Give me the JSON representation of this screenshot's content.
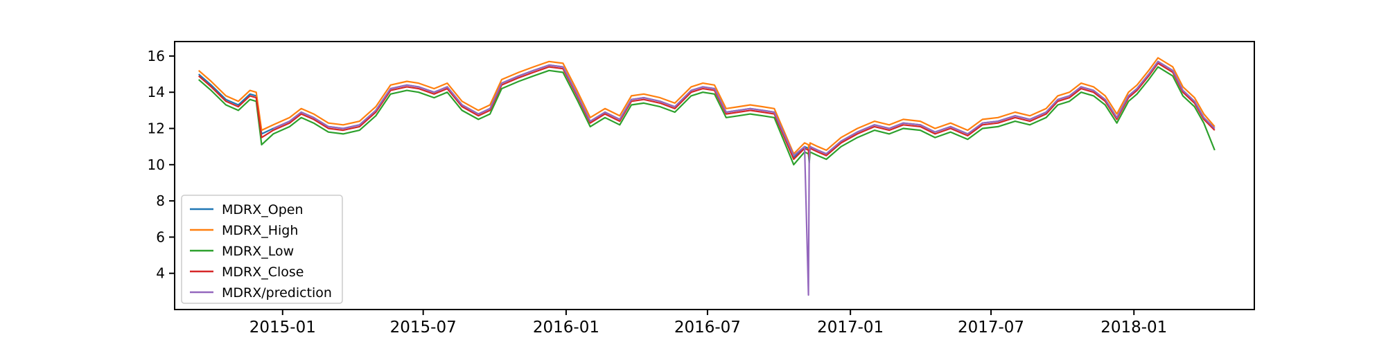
{
  "chart_data": {
    "type": "line",
    "title": "",
    "xlabel": "",
    "ylabel": "",
    "xlim": [
      "2014-08-15",
      "2018-06-05"
    ],
    "ylim": [
      2.0,
      16.8
    ],
    "grid": false,
    "legend_position": "lower-left",
    "x_ticks": [
      {
        "date": "2015-01-01",
        "label": "2015-01"
      },
      {
        "date": "2015-07-01",
        "label": "2015-07"
      },
      {
        "date": "2016-01-01",
        "label": "2016-01"
      },
      {
        "date": "2016-07-01",
        "label": "2016-07"
      },
      {
        "date": "2017-01-01",
        "label": "2017-01"
      },
      {
        "date": "2017-07-01",
        "label": "2017-07"
      },
      {
        "date": "2018-01-01",
        "label": "2018-01"
      }
    ],
    "y_ticks": [
      4,
      6,
      8,
      10,
      12,
      14,
      16
    ],
    "x": [
      "2014-09-15",
      "2014-10-01",
      "2014-10-20",
      "2014-11-05",
      "2014-11-20",
      "2014-11-28",
      "2014-12-05",
      "2014-12-20",
      "2015-01-10",
      "2015-01-25",
      "2015-02-10",
      "2015-03-01",
      "2015-03-20",
      "2015-04-10",
      "2015-05-01",
      "2015-05-20",
      "2015-06-10",
      "2015-06-25",
      "2015-07-15",
      "2015-08-01",
      "2015-08-20",
      "2015-09-10",
      "2015-09-25",
      "2015-10-10",
      "2015-11-01",
      "2015-11-20",
      "2015-12-10",
      "2015-12-28",
      "2016-01-15",
      "2016-02-01",
      "2016-02-20",
      "2016-03-10",
      "2016-03-25",
      "2016-04-10",
      "2016-05-01",
      "2016-05-20",
      "2016-06-10",
      "2016-06-25",
      "2016-07-10",
      "2016-07-25",
      "2016-08-10",
      "2016-08-25",
      "2016-09-10",
      "2016-09-25",
      "2016-10-20",
      "2016-11-03",
      "2016-11-08",
      "2016-11-09",
      "2016-11-10",
      "2016-11-20",
      "2016-12-01",
      "2016-12-20",
      "2017-01-10",
      "2017-02-01",
      "2017-02-20",
      "2017-03-10",
      "2017-04-01",
      "2017-04-20",
      "2017-05-10",
      "2017-06-01",
      "2017-06-20",
      "2017-07-10",
      "2017-08-01",
      "2017-08-20",
      "2017-09-10",
      "2017-09-25",
      "2017-10-10",
      "2017-10-25",
      "2017-11-10",
      "2017-11-25",
      "2017-12-10",
      "2017-12-25",
      "2018-01-05",
      "2018-01-20",
      "2018-02-01",
      "2018-02-20",
      "2018-03-05",
      "2018-03-20",
      "2018-04-01",
      "2018-04-15"
    ],
    "series": [
      {
        "name": "MDRX_Open",
        "color": "#1f77b4",
        "values": [
          15.0,
          14.4,
          13.6,
          13.3,
          13.9,
          13.8,
          11.7,
          12.0,
          12.4,
          12.9,
          12.6,
          12.1,
          12.0,
          12.2,
          13.0,
          14.2,
          14.4,
          14.3,
          14.0,
          14.3,
          13.3,
          12.8,
          13.1,
          14.5,
          14.9,
          15.2,
          15.5,
          15.4,
          13.9,
          12.4,
          12.9,
          12.5,
          13.6,
          13.7,
          13.5,
          13.2,
          14.1,
          14.3,
          14.2,
          12.9,
          13.0,
          13.1,
          13.0,
          12.9,
          10.4,
          11.0,
          10.9,
          10.4,
          11.0,
          10.8,
          10.6,
          11.3,
          11.8,
          12.2,
          12.0,
          12.3,
          12.2,
          11.8,
          12.1,
          11.7,
          12.3,
          12.4,
          12.7,
          12.5,
          12.9,
          13.6,
          13.8,
          14.3,
          14.1,
          13.6,
          12.6,
          13.8,
          14.2,
          15.0,
          15.7,
          15.2,
          14.1,
          13.5,
          12.6,
          12.0
        ]
      },
      {
        "name": "MDRX_High",
        "color": "#ff7f0e",
        "values": [
          15.2,
          14.6,
          13.8,
          13.5,
          14.1,
          14.0,
          11.9,
          12.2,
          12.6,
          13.1,
          12.8,
          12.3,
          12.2,
          12.4,
          13.2,
          14.4,
          14.6,
          14.5,
          14.2,
          14.5,
          13.5,
          13.0,
          13.3,
          14.7,
          15.1,
          15.4,
          15.7,
          15.6,
          14.1,
          12.6,
          13.1,
          12.7,
          13.8,
          13.9,
          13.7,
          13.4,
          14.3,
          14.5,
          14.4,
          13.1,
          13.2,
          13.3,
          13.2,
          13.1,
          10.6,
          11.2,
          11.1,
          10.6,
          11.2,
          11.0,
          10.8,
          11.5,
          12.0,
          12.4,
          12.2,
          12.5,
          12.4,
          12.0,
          12.3,
          11.9,
          12.5,
          12.6,
          12.9,
          12.7,
          13.1,
          13.8,
          14.0,
          14.5,
          14.3,
          13.8,
          12.8,
          14.0,
          14.4,
          15.2,
          15.9,
          15.4,
          14.3,
          13.7,
          12.8,
          12.1
        ]
      },
      {
        "name": "MDRX_Low",
        "color": "#2ca02c",
        "values": [
          14.7,
          14.1,
          13.3,
          13.0,
          13.6,
          13.5,
          11.1,
          11.7,
          12.1,
          12.6,
          12.3,
          11.8,
          11.7,
          11.9,
          12.7,
          13.9,
          14.1,
          14.0,
          13.7,
          14.0,
          13.0,
          12.5,
          12.8,
          14.2,
          14.6,
          14.9,
          15.2,
          15.1,
          13.6,
          12.1,
          12.6,
          12.2,
          13.3,
          13.4,
          13.2,
          12.9,
          13.8,
          14.0,
          13.9,
          12.6,
          12.7,
          12.8,
          12.7,
          12.6,
          10.0,
          10.7,
          10.6,
          10.1,
          10.7,
          10.5,
          10.3,
          11.0,
          11.5,
          11.9,
          11.7,
          12.0,
          11.9,
          11.5,
          11.8,
          11.4,
          12.0,
          12.1,
          12.4,
          12.2,
          12.6,
          13.3,
          13.5,
          14.0,
          13.8,
          13.3,
          12.3,
          13.5,
          13.9,
          14.7,
          15.4,
          14.9,
          13.8,
          13.2,
          12.3,
          10.8
        ]
      },
      {
        "name": "MDRX_Close",
        "color": "#d62728",
        "values": [
          14.9,
          14.3,
          13.5,
          13.2,
          13.8,
          13.7,
          11.5,
          11.9,
          12.3,
          12.8,
          12.5,
          12.0,
          11.9,
          12.1,
          12.9,
          14.1,
          14.3,
          14.2,
          13.9,
          14.2,
          13.2,
          12.7,
          13.0,
          14.4,
          14.8,
          15.1,
          15.4,
          15.3,
          13.8,
          12.3,
          12.8,
          12.4,
          13.5,
          13.6,
          13.4,
          13.1,
          14.0,
          14.2,
          14.1,
          12.8,
          12.9,
          13.0,
          12.9,
          12.8,
          10.3,
          10.9,
          10.8,
          10.3,
          10.9,
          10.7,
          10.5,
          11.2,
          11.7,
          12.1,
          11.9,
          12.2,
          12.1,
          11.7,
          12.0,
          11.6,
          12.2,
          12.3,
          12.6,
          12.4,
          12.8,
          13.5,
          13.7,
          14.2,
          14.0,
          13.5,
          12.5,
          13.7,
          14.1,
          14.9,
          15.6,
          15.1,
          14.0,
          13.4,
          12.5,
          11.9
        ]
      },
      {
        "name": "MDRX/prediction",
        "color": "#9467bd",
        "values": [
          null,
          null,
          null,
          null,
          null,
          null,
          null,
          12.0,
          12.4,
          12.9,
          12.6,
          12.1,
          12.0,
          12.2,
          13.0,
          14.2,
          14.4,
          14.3,
          14.0,
          14.3,
          13.3,
          12.8,
          13.1,
          14.5,
          14.9,
          15.2,
          15.5,
          15.4,
          13.9,
          12.4,
          12.9,
          12.5,
          13.6,
          13.7,
          13.5,
          13.2,
          14.1,
          14.3,
          14.2,
          12.9,
          13.0,
          13.1,
          13.0,
          12.9,
          10.5,
          11.0,
          2.8,
          10.4,
          11.0,
          10.8,
          10.6,
          11.3,
          11.8,
          12.2,
          12.0,
          12.3,
          12.2,
          11.8,
          12.1,
          11.7,
          12.3,
          12.4,
          12.7,
          12.5,
          12.9,
          13.6,
          13.8,
          14.3,
          14.1,
          13.6,
          12.6,
          13.8,
          14.2,
          15.0,
          15.7,
          15.2,
          14.1,
          13.5,
          12.6,
          12.0
        ]
      }
    ]
  }
}
